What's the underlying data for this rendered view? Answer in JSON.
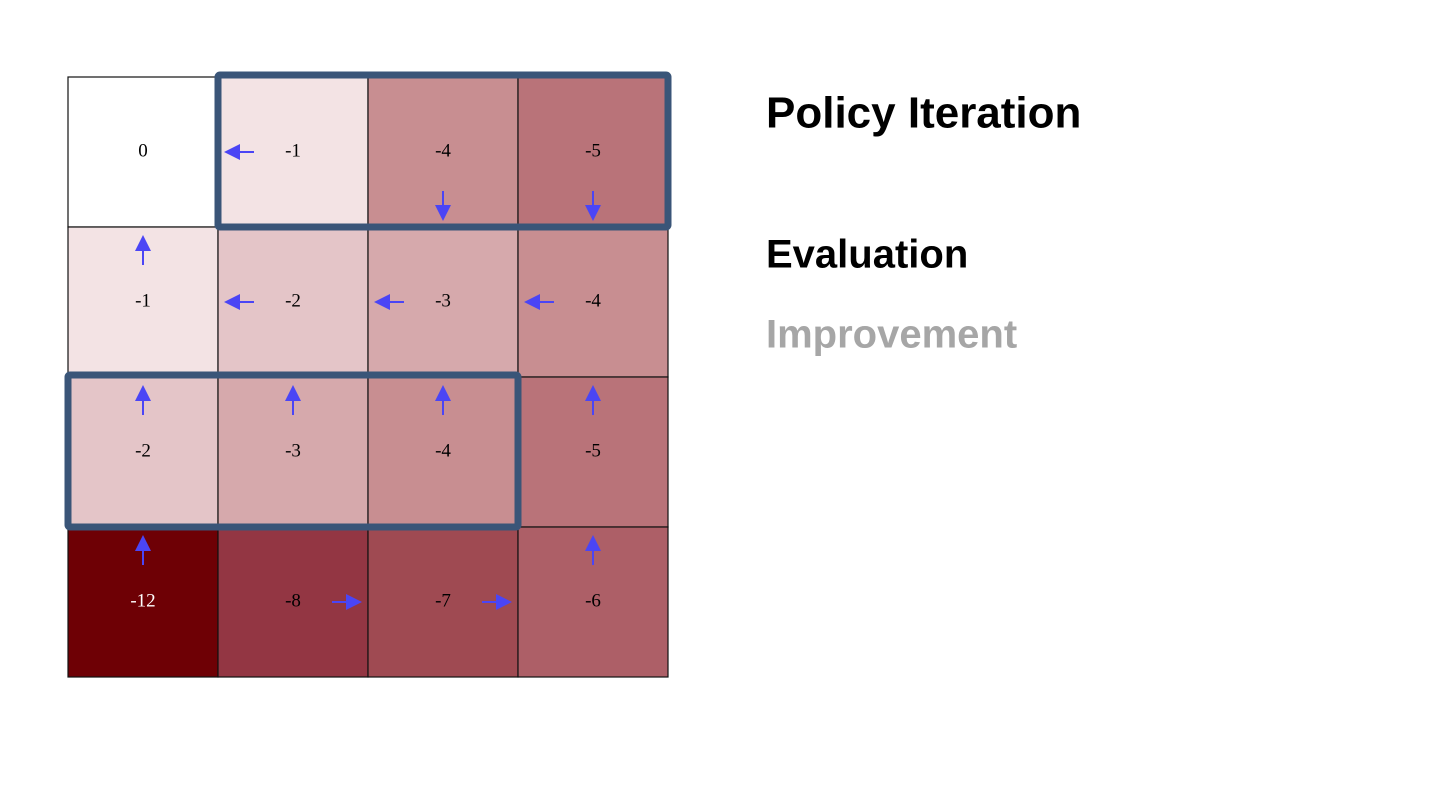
{
  "grid": {
    "rows": [
      [
        {
          "value": 0,
          "color": "#ffffff",
          "text_color": "#000000",
          "arrow": null
        },
        {
          "value": -1,
          "color": "#f3e3e4",
          "text_color": "#000000",
          "arrow": "left"
        },
        {
          "value": -4,
          "color": "#c88e91",
          "text_color": "#000000",
          "arrow": "down"
        },
        {
          "value": -5,
          "color": "#b97379",
          "text_color": "#000000",
          "arrow": "down"
        }
      ],
      [
        {
          "value": -1,
          "color": "#f3e3e4",
          "text_color": "#000000",
          "arrow": "up"
        },
        {
          "value": -2,
          "color": "#e4c5c8",
          "text_color": "#000000",
          "arrow": "left"
        },
        {
          "value": -3,
          "color": "#d6a9ac",
          "text_color": "#000000",
          "arrow": "left"
        },
        {
          "value": -4,
          "color": "#c88e91",
          "text_color": "#000000",
          "arrow": "left"
        }
      ],
      [
        {
          "value": -2,
          "color": "#e4c5c8",
          "text_color": "#000000",
          "arrow": "up"
        },
        {
          "value": -3,
          "color": "#d6a9ac",
          "text_color": "#000000",
          "arrow": "up"
        },
        {
          "value": -4,
          "color": "#c88e91",
          "text_color": "#000000",
          "arrow": "up"
        },
        {
          "value": -5,
          "color": "#b97379",
          "text_color": "#000000",
          "arrow": "up"
        }
      ],
      [
        {
          "value": -12,
          "color": "#6e0005",
          "text_color": "#ffffff",
          "arrow": "up"
        },
        {
          "value": -8,
          "color": "#933643",
          "text_color": "#000000",
          "arrow": "right"
        },
        {
          "value": -7,
          "color": "#9f4a52",
          "text_color": "#000000",
          "arrow": "right"
        },
        {
          "value": -6,
          "color": "#ad5f67",
          "text_color": "#000000",
          "arrow": "up"
        }
      ]
    ]
  },
  "header": {
    "title": "Policy Iteration"
  },
  "steps": [
    {
      "label": "Evaluation",
      "color": "#000000"
    },
    {
      "label": "Improvement",
      "color": "#a6a6a6"
    }
  ]
}
